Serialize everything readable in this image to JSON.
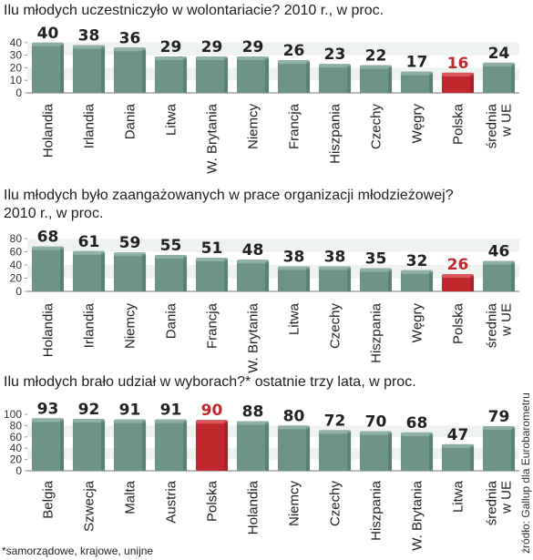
{
  "colors": {
    "bar": "#6d9585",
    "bar_dark": "#4f7768",
    "highlight": "#c0282d",
    "highlight_dark": "#9a1e22",
    "band": "#cfdcd5"
  },
  "footnote": "*samorządowe, krajowe, unijne",
  "source": "źródło: Gallup dla Eurobarometru",
  "chart_data": [
    {
      "type": "bar",
      "title": "Ilu młodych uczestniczyło w wolontariacie? 2010 r., w proc.",
      "categories": [
        "Holandia",
        "Irlandia",
        "Dania",
        "Litwa",
        "W. Brytania",
        "Niemcy",
        "Francja",
        "Hiszpania",
        "Czechy",
        "Węgry",
        "Polska",
        "średnia\nw UE"
      ],
      "values": [
        40,
        38,
        36,
        29,
        29,
        29,
        26,
        23,
        22,
        17,
        16,
        24
      ],
      "highlight": "Polska",
      "ylim": [
        0,
        42
      ],
      "yticks": [
        0,
        10,
        20,
        30,
        40
      ],
      "grid": false,
      "xlabel": "",
      "ylabel": ""
    },
    {
      "type": "bar",
      "title": "Ilu młodych było zaangażowanych w prace organizacji młodzieżowej?\n2010 r., w proc.",
      "categories": [
        "Holandia",
        "Irlandia",
        "Niemcy",
        "Dania",
        "Francja",
        "W. Brytania",
        "Litwa",
        "Czechy",
        "Hiszpania",
        "Węgry",
        "Polska",
        "średnia\nw UE"
      ],
      "values": [
        68,
        61,
        59,
        55,
        51,
        48,
        38,
        38,
        35,
        32,
        26,
        46
      ],
      "highlight": "Polska",
      "ylim": [
        0,
        80
      ],
      "yticks": [
        0,
        20,
        40,
        60,
        80
      ],
      "grid": false,
      "xlabel": "",
      "ylabel": ""
    },
    {
      "type": "bar",
      "title": "Ilu młodych brało udział w wyborach?* ostatnie trzy lata, w proc.",
      "categories": [
        "Belgia",
        "Szwecja",
        "Malta",
        "Austria",
        "Polska",
        "Holandia",
        "Niemcy",
        "Czechy",
        "Hiszpania",
        "W. Brytania",
        "Litwa",
        "średnia\nw UE"
      ],
      "values": [
        93,
        92,
        91,
        91,
        90,
        88,
        80,
        72,
        70,
        68,
        47,
        79
      ],
      "highlight": "Polska",
      "ylim": [
        0,
        100
      ],
      "yticks": [
        0,
        20,
        40,
        60,
        80,
        100
      ],
      "grid": false,
      "xlabel": "",
      "ylabel": ""
    }
  ]
}
